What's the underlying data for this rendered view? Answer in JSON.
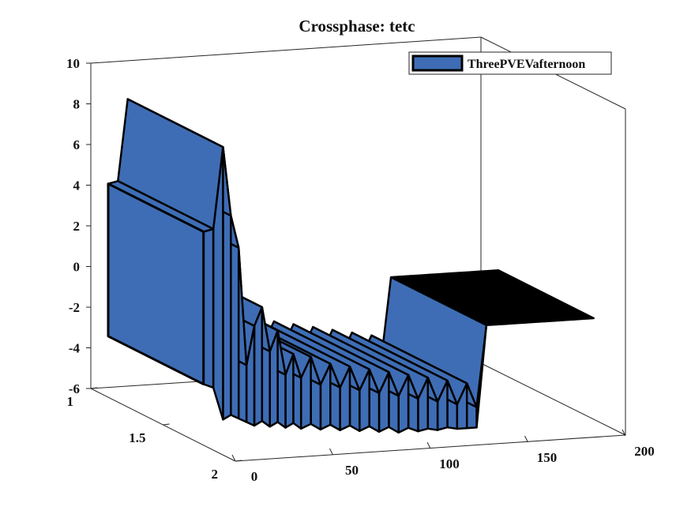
{
  "chart_data": {
    "type": "area",
    "title": "Crossphase: tetc",
    "xlabel": "",
    "ylabel": "",
    "zlabel": "",
    "x_axis": {
      "range": [
        0,
        200
      ],
      "ticks": [
        "0",
        "50",
        "100",
        "150",
        "200"
      ]
    },
    "y_axis": {
      "range": [
        1,
        2
      ],
      "ticks": [
        "1",
        "1.5",
        "2"
      ]
    },
    "z_axis": {
      "range": [
        -6,
        10
      ],
      "ticks": [
        "-6",
        "-4",
        "-2",
        "0",
        "2",
        "4",
        "6",
        "8",
        "10"
      ]
    },
    "legend": {
      "entries": [
        "ThreePVEVafternoon"
      ],
      "placement": "top-right"
    },
    "grid": false,
    "view": "3d",
    "series": [
      {
        "name": "ThreePVEVafternoon",
        "fill_color": "#3e6db5",
        "edge_color": "#000000",
        "x": [
          0,
          5,
          10,
          14,
          18,
          22,
          26,
          30,
          34,
          38,
          42,
          46,
          50,
          55,
          60,
          65,
          70,
          75,
          80,
          85,
          90,
          95,
          100,
          105,
          110,
          115,
          120,
          125,
          130,
          135,
          140,
          145,
          150,
          155,
          160,
          165,
          170,
          175,
          180,
          185,
          190,
          195,
          200
        ],
        "top": [
          4.5,
          4.6,
          8.6,
          5.2,
          3.6,
          -2.2,
          -0.3,
          0.6,
          -1.6,
          -0.6,
          -2.8,
          -1.8,
          -3.0,
          -2.0,
          -3.4,
          -2.4,
          -3.6,
          -2.6,
          -3.8,
          -2.8,
          -4.0,
          -3.0,
          -4.2,
          -3.2,
          -4.4,
          -3.4,
          -4.6,
          -3.6,
          -4.8,
          -3.8,
          -5.0,
          -1.0,
          -1.0,
          -1.0,
          -1.0,
          -1.0,
          -1.0,
          -1.0,
          -1.0,
          -1.0,
          -1.0,
          -1.0,
          -1.0
        ],
        "bottom": [
          -3.0,
          -3.2,
          -4.8,
          -4.6,
          -4.8,
          -5.0,
          -5.2,
          -5.0,
          -5.3,
          -5.1,
          -5.4,
          -5.2,
          -5.5,
          -5.3,
          -5.6,
          -5.4,
          -5.7,
          -5.5,
          -5.8,
          -5.6,
          -5.9,
          -5.7,
          -6.0,
          -5.8,
          -6.0,
          -5.9,
          -6.0,
          -5.9,
          -6.0,
          -6.0,
          -6.0,
          -1.0,
          -1.0,
          -1.0,
          -1.0,
          -1.0,
          -1.0,
          -1.0,
          -1.0,
          -1.0,
          -1.0,
          -1.0,
          -1.0
        ]
      }
    ]
  },
  "colors": {
    "fill": "#3e6db5",
    "edge": "#000000",
    "axis": "#262626",
    "background": "#ffffff"
  }
}
